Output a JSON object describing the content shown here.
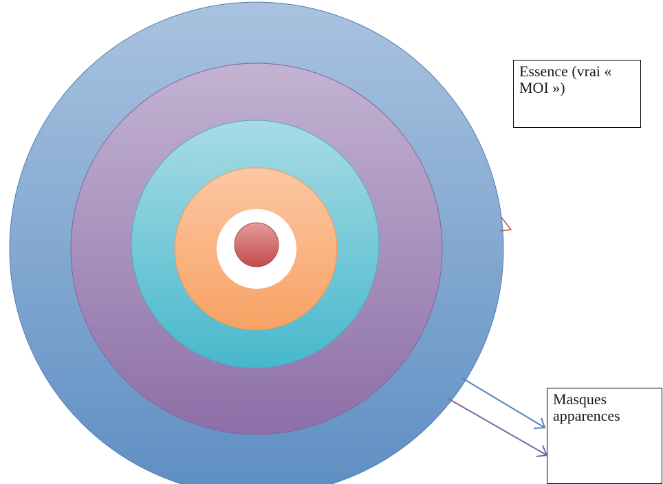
{
  "diagram": {
    "labels": {
      "essence_line1": "Essence (vrai «",
      "essence_line2": "MOI »)",
      "masques_line1": "Masques",
      "masques_line2": "apparences"
    },
    "rings": [
      {
        "name": "outer",
        "top_color": "#a9c3df",
        "bottom_color": "#5e8ec3",
        "stroke": "#4f7fb5"
      },
      {
        "name": "second",
        "top_color": "#c3b3d2",
        "bottom_color": "#8d6fa7",
        "stroke": "#8064a2"
      },
      {
        "name": "third",
        "top_color": "#a8dbe5",
        "bottom_color": "#47b8cc",
        "stroke": "#4bacc6"
      },
      {
        "name": "fourth",
        "top_color": "#fbc7a3",
        "bottom_color": "#f8a264",
        "stroke": "#f79646"
      },
      {
        "name": "white-gap",
        "top_color": "#ffffff",
        "bottom_color": "#ffffff",
        "stroke": "#ffffff"
      },
      {
        "name": "core",
        "top_color": "#e59b9b",
        "bottom_color": "#c14c4c",
        "stroke": "#b04545"
      }
    ],
    "arrow_colors": {
      "red": "#c0504d",
      "blue": "#4f81bd",
      "purple": "#8064a2"
    }
  }
}
